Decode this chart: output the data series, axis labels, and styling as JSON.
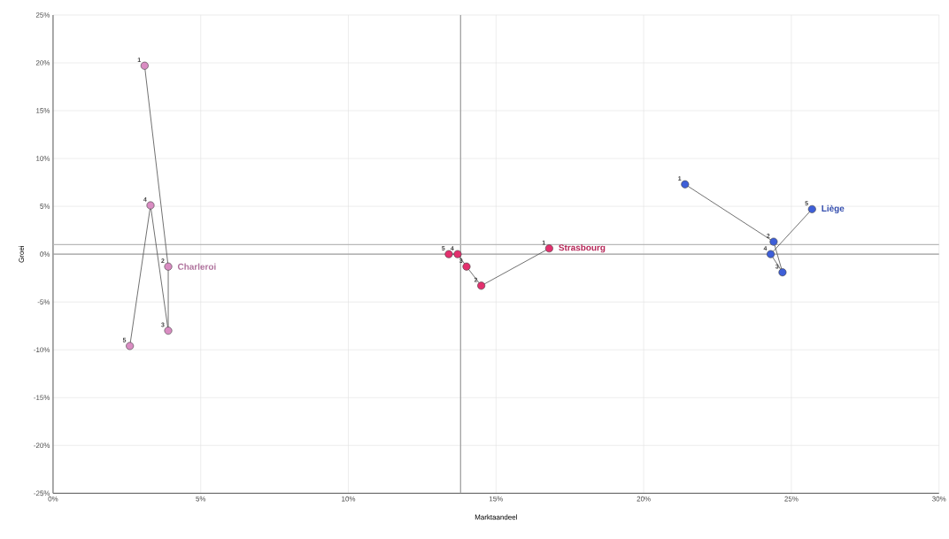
{
  "chart_data": {
    "type": "line",
    "xlabel": "Marktaandeel",
    "ylabel": "Groei",
    "marker": "circle",
    "grid": true,
    "xlim": [
      0,
      30
    ],
    "ylim": [
      -25,
      25
    ],
    "xticks": [
      {
        "value": 0,
        "label": "0%"
      },
      {
        "value": 5,
        "label": "5%"
      },
      {
        "value": 10,
        "label": "10%"
      },
      {
        "value": 15,
        "label": "15%"
      },
      {
        "value": 20,
        "label": "20%"
      },
      {
        "value": 25,
        "label": "25%"
      },
      {
        "value": 30,
        "label": "30%"
      }
    ],
    "yticks": [
      {
        "value": -25,
        "label": "-25%"
      },
      {
        "value": -20,
        "label": "-20%"
      },
      {
        "value": -15,
        "label": "-15%"
      },
      {
        "value": -10,
        "label": "-10%"
      },
      {
        "value": -5,
        "label": "-5%"
      },
      {
        "value": 0,
        "label": "0%"
      },
      {
        "value": 5,
        "label": "5%"
      },
      {
        "value": 10,
        "label": "10%"
      },
      {
        "value": 15,
        "label": "15%"
      },
      {
        "value": 20,
        "label": "20%"
      },
      {
        "value": 25,
        "label": "25%"
      }
    ],
    "series": [
      {
        "name": "Charleroi",
        "color": "#d98cc2",
        "x": [
          3.1,
          3.9,
          3.9,
          3.3,
          2.6
        ],
        "values": [
          19.7,
          -1.3,
          -8.0,
          5.1,
          -9.6
        ]
      },
      {
        "name": "Strasbourg",
        "color": "#e3306e",
        "x": [
          16.8,
          14.5,
          14.0,
          13.7,
          13.4
        ],
        "values": [
          0.6,
          -3.3,
          -1.3,
          0,
          0
        ]
      },
      {
        "name": "Liège",
        "color": "#3e5fd8",
        "x": [
          21.4,
          24.4,
          24.7,
          24.3,
          25.7
        ],
        "values": [
          7.3,
          1.3,
          -1.9,
          0,
          4.7
        ]
      }
    ],
    "ref_lines": [
      {
        "axis": "x",
        "value": 13.8,
        "color": "#a0a0a0"
      },
      {
        "axis": "y",
        "value": 0,
        "color": "#a0a0a0"
      },
      {
        "axis": "y",
        "value": 1,
        "color": "#b8b8b8"
      }
    ],
    "annotations": [
      {
        "text": "1",
        "x": 3.1,
        "y": 19.7
      },
      {
        "text": "2",
        "x": 3.9,
        "y": -1.3
      },
      {
        "text": "3",
        "x": 3.9,
        "y": -8.0
      },
      {
        "text": "4",
        "x": 3.3,
        "y": 5.1
      },
      {
        "text": "5",
        "x": 2.6,
        "y": -9.6
      },
      {
        "text": "1",
        "x": 16.8,
        "y": 0.6
      },
      {
        "text": "2",
        "x": 14.5,
        "y": -3.3
      },
      {
        "text": "3",
        "x": 14.0,
        "y": -1.3
      },
      {
        "text": "4",
        "x": 13.7,
        "y": 0
      },
      {
        "text": "5",
        "x": 13.4,
        "y": 0
      },
      {
        "text": "1",
        "x": 21.4,
        "y": 7.3
      },
      {
        "text": "2",
        "x": 24.4,
        "y": 1.3
      },
      {
        "text": "3",
        "x": 24.7,
        "y": -1.9
      },
      {
        "text": "4",
        "x": 24.3,
        "y": 0
      },
      {
        "text": "5",
        "x": 25.7,
        "y": 4.7
      }
    ]
  }
}
